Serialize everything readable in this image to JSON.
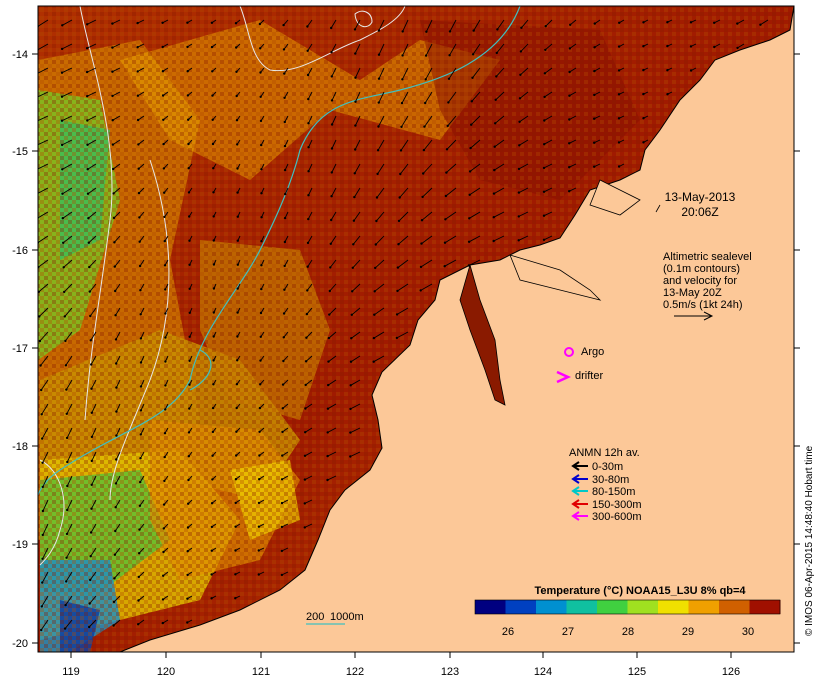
{
  "map": {
    "lon_ticks": [
      "119",
      "120",
      "121",
      "122",
      "123",
      "124",
      "125",
      "126"
    ],
    "lat_ticks": [
      "-14",
      "-15",
      "-16",
      "-17",
      "-18",
      "-19",
      "-20"
    ]
  },
  "annotations": {
    "date": "13-May-2013",
    "time": "20:06Z",
    "altimetry_lines": [
      "Altimetric sealevel",
      "(0.1m contours)",
      "and velocity for",
      "13-May 20Z",
      "0.5m/s (1kt 24h)"
    ]
  },
  "markers": {
    "argo_label": "Argo",
    "drifter_label": "drifter"
  },
  "anmn_legend": {
    "title": "ANMN 12h av.",
    "items": [
      {
        "label": "0-30m",
        "color": "#000000"
      },
      {
        "label": "30-80m",
        "color": "#0000cc"
      },
      {
        "label": "80-150m",
        "color": "#00c8c8"
      },
      {
        "label": "150-300m",
        "color": "#e00000"
      },
      {
        "label": "300-600m",
        "color": "#ff00ff"
      }
    ]
  },
  "colorbar": {
    "title": "Temperature (°C) NOAA15_L3U 8% qb=4",
    "ticks": [
      "26",
      "27",
      "28",
      "29",
      "30"
    ],
    "colors": [
      "#000080",
      "#0040c0",
      "#0090d0",
      "#10c0a0",
      "#40d040",
      "#a0e020",
      "#f0e000",
      "#f0a000",
      "#d06000",
      "#a01000"
    ]
  },
  "isobath": {
    "label_200": "200",
    "label_1000": "1000m"
  },
  "credit": "© IMOS 06-Apr-2015 14:48:40 Hobart time",
  "colors": {
    "land": "#fcc898",
    "contour": "#e8e8e8",
    "isobath": "#40c0c0"
  }
}
